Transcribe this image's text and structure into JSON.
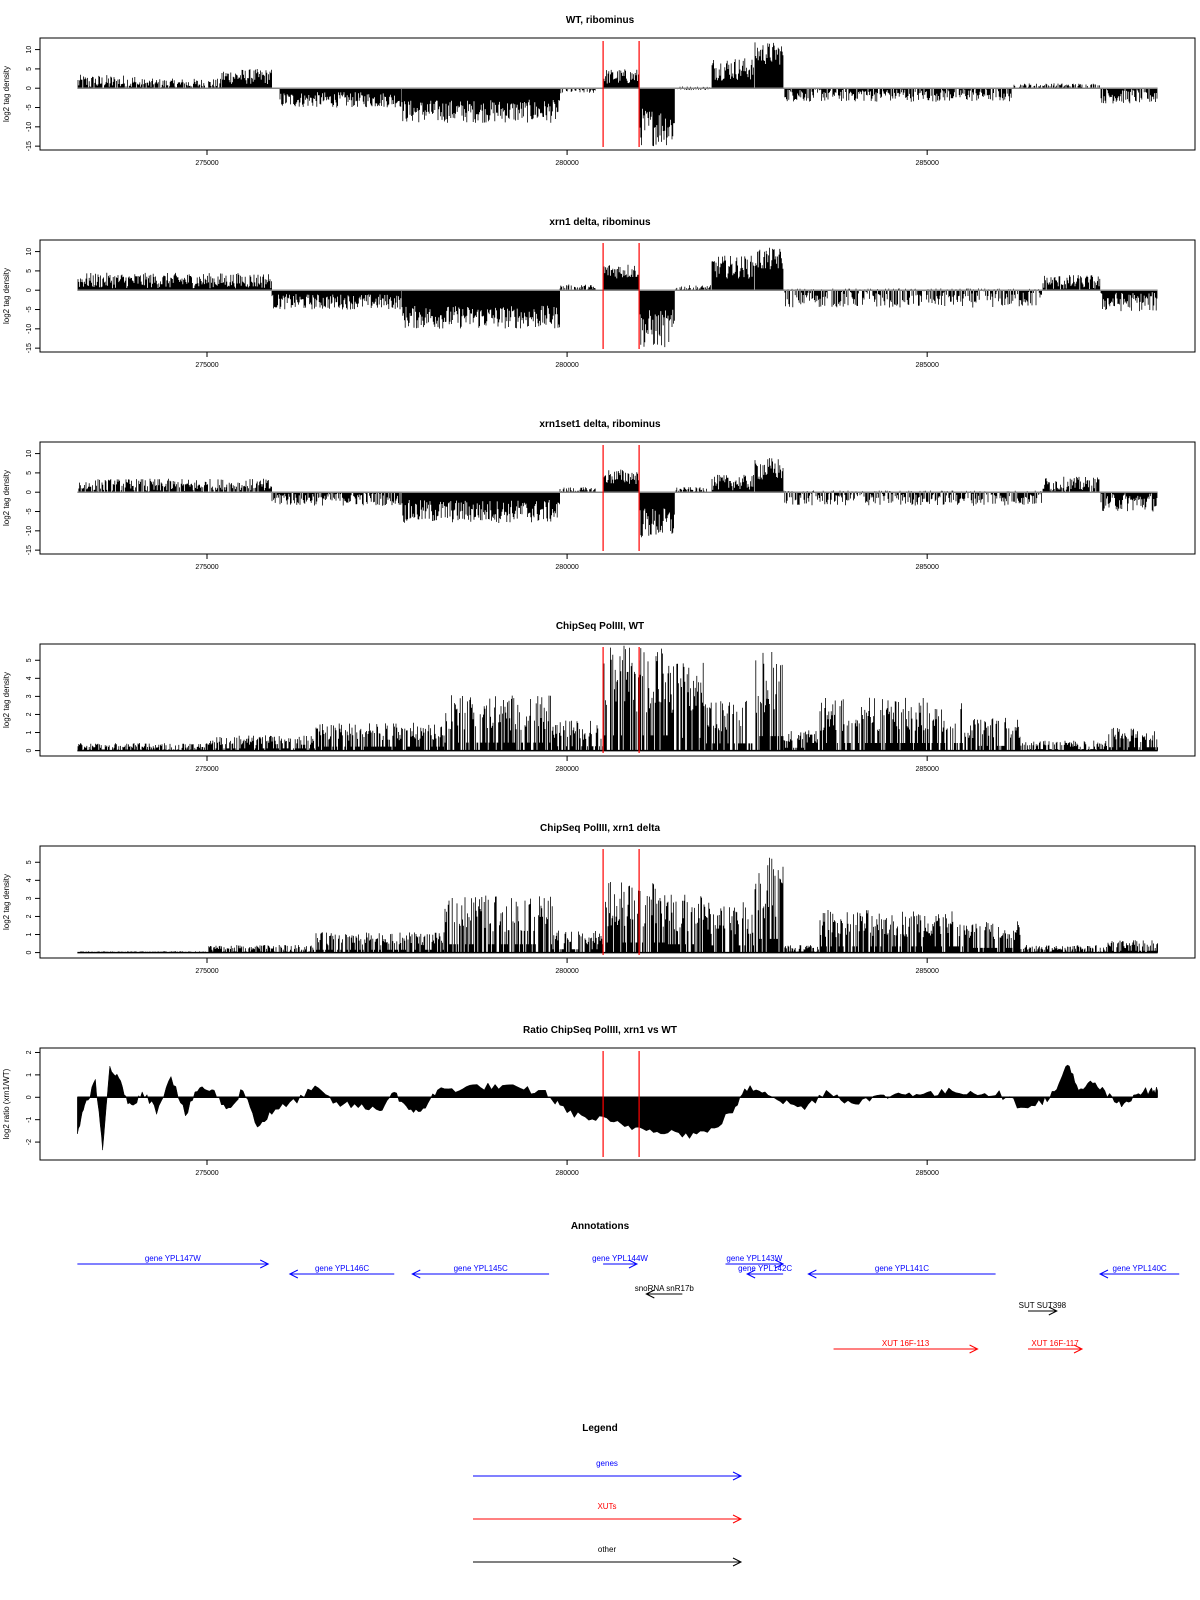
{
  "colors": {
    "gene": "#0000ff",
    "xut": "#ff0000",
    "other": "#000000",
    "marker": "#ff0000",
    "axis": "#000000",
    "fill": "#000000"
  },
  "markers": [
    280500,
    281000
  ],
  "xticks": [
    275000,
    280000,
    285000
  ],
  "xticks_labels": [
    "275000",
    "280000",
    "285000"
  ],
  "xrange": [
    273200,
    288200
  ],
  "chart_data": [
    {
      "type": "area",
      "title": "WT, ribominus",
      "ylabel": "log2 tag density",
      "ylim": [
        -16,
        13
      ],
      "yticks": [
        -15,
        -10,
        -5,
        0,
        5,
        10
      ],
      "yticks_labels": [
        "-15",
        "-10",
        "-5",
        "0",
        "5",
        "10"
      ],
      "profile": [
        [
          273200,
          274000,
          1.5,
          2
        ],
        [
          274000,
          275200,
          1,
          1.5
        ],
        [
          275200,
          275900,
          3,
          2
        ],
        [
          276000,
          277700,
          -3,
          2
        ],
        [
          277700,
          279900,
          -6,
          3
        ],
        [
          279900,
          280400,
          -0.5,
          0.8
        ],
        [
          280500,
          281000,
          3,
          2
        ],
        [
          281000,
          281500,
          -10,
          5
        ],
        [
          281500,
          282000,
          0,
          0.5
        ],
        [
          282000,
          282600,
          5,
          3
        ],
        [
          282600,
          283000,
          9,
          3
        ],
        [
          283000,
          286200,
          -1.5,
          2
        ],
        [
          286200,
          287400,
          0.5,
          0.8
        ],
        [
          287400,
          288200,
          -2,
          2
        ]
      ]
    },
    {
      "type": "area",
      "title": "xrn1 delta, ribominus",
      "ylabel": "log2 tag density",
      "ylim": [
        -16,
        13
      ],
      "yticks": [
        -15,
        -10,
        -5,
        0,
        5,
        10
      ],
      "yticks_labels": [
        "-15",
        "-10",
        "-5",
        "0",
        "5",
        "10"
      ],
      "profile": [
        [
          273200,
          275900,
          2.5,
          2
        ],
        [
          275900,
          277700,
          -3,
          2
        ],
        [
          277700,
          279900,
          -7,
          3
        ],
        [
          279900,
          280400,
          0.5,
          1
        ],
        [
          280500,
          281000,
          5,
          2
        ],
        [
          281000,
          281500,
          -10,
          5
        ],
        [
          281500,
          282000,
          0.5,
          0.8
        ],
        [
          282000,
          282600,
          6,
          3
        ],
        [
          282600,
          283000,
          8,
          3
        ],
        [
          283000,
          286600,
          -1.5,
          3
        ],
        [
          286600,
          287400,
          2,
          2
        ],
        [
          287400,
          288200,
          -3,
          2.5
        ]
      ]
    },
    {
      "type": "area",
      "title": "xrn1set1 delta, ribominus",
      "ylabel": "log2 tag density",
      "ylim": [
        -16,
        13
      ],
      "yticks": [
        -15,
        -10,
        -5,
        0,
        5,
        10
      ],
      "yticks_labels": [
        "-15",
        "-10",
        "-5",
        "0",
        "5",
        "10"
      ],
      "profile": [
        [
          273200,
          275900,
          1.5,
          2
        ],
        [
          275900,
          277700,
          -1.5,
          2
        ],
        [
          277700,
          279900,
          -5,
          3
        ],
        [
          279900,
          280400,
          0.5,
          0.8
        ],
        [
          280500,
          281000,
          4,
          2
        ],
        [
          281000,
          281500,
          -8,
          4
        ],
        [
          281500,
          282000,
          0.5,
          0.8
        ],
        [
          282000,
          282600,
          2.5,
          2
        ],
        [
          282600,
          283000,
          6,
          3
        ],
        [
          283000,
          286600,
          -1,
          2.5
        ],
        [
          286600,
          287400,
          2,
          2
        ],
        [
          287400,
          288200,
          -2.5,
          2.5
        ]
      ]
    },
    {
      "type": "bar",
      "title": "ChipSeq PolIII, WT",
      "ylabel": "log2 tag density",
      "ylim": [
        -0.3,
        5.9
      ],
      "yticks": [
        0,
        1,
        2,
        3,
        4,
        5
      ],
      "yticks_labels": [
        "0",
        "1",
        "2",
        "3",
        "4",
        "5"
      ],
      "profile": [
        [
          273200,
          275000,
          0.3,
          0.5
        ],
        [
          275000,
          276500,
          0.6,
          0.8
        ],
        [
          276500,
          278300,
          1.1,
          0.9
        ],
        [
          278300,
          279800,
          2.2,
          0.8
        ],
        [
          279800,
          280500,
          1.2,
          0.8
        ],
        [
          280500,
          281400,
          4.2,
          1.2
        ],
        [
          281400,
          281900,
          3.5,
          1.4
        ],
        [
          281900,
          282600,
          2.0,
          0.8
        ],
        [
          282600,
          283000,
          4.0,
          0.7
        ],
        [
          283000,
          283500,
          0.8,
          0.6
        ],
        [
          283500,
          285500,
          2.1,
          0.8
        ],
        [
          285500,
          286300,
          1.3,
          0.7
        ],
        [
          286300,
          287500,
          0.4,
          0.5
        ],
        [
          287500,
          288200,
          0.9,
          0.7
        ]
      ]
    },
    {
      "type": "bar",
      "title": "ChipSeq PolIII, xrn1 delta",
      "ylabel": "log2 tag density",
      "ylim": [
        -0.3,
        5.9
      ],
      "yticks": [
        0,
        1,
        2,
        3,
        4,
        5
      ],
      "yticks_labels": [
        "0",
        "1",
        "2",
        "3",
        "4",
        "5"
      ],
      "profile": [
        [
          273200,
          275000,
          0.05,
          0.15
        ],
        [
          275000,
          276500,
          0.3,
          0.4
        ],
        [
          276500,
          278300,
          0.8,
          0.7
        ],
        [
          278300,
          279800,
          2.3,
          0.6
        ],
        [
          279800,
          280500,
          0.9,
          0.6
        ],
        [
          280500,
          281400,
          2.8,
          1.0
        ],
        [
          281400,
          281900,
          2.3,
          1.0
        ],
        [
          281900,
          282600,
          2.0,
          0.8
        ],
        [
          282600,
          283000,
          3.8,
          0.7
        ],
        [
          283000,
          283500,
          0.3,
          0.4
        ],
        [
          283500,
          285500,
          1.7,
          0.8
        ],
        [
          285500,
          286300,
          1.3,
          0.7
        ],
        [
          286300,
          287500,
          0.3,
          0.4
        ],
        [
          287500,
          288200,
          0.5,
          0.5
        ]
      ]
    },
    {
      "type": "area",
      "title": "Ratio ChipSeq PolIII, xrn1 vs WT",
      "ylabel": "log2 ratio (xrn1/WT)",
      "ylim": [
        -2.8,
        2.2
      ],
      "yticks": [
        -2,
        -1,
        0,
        1,
        2
      ],
      "yticks_labels": [
        "-2",
        "-1",
        "0",
        "1",
        "2"
      ],
      "points": [
        [
          273200,
          -1.5
        ],
        [
          273300,
          -0.5
        ],
        [
          273450,
          0.8
        ],
        [
          273550,
          -2.4
        ],
        [
          273650,
          1.4
        ],
        [
          273800,
          0.6
        ],
        [
          273950,
          -0.5
        ],
        [
          274100,
          0.3
        ],
        [
          274300,
          -0.6
        ],
        [
          274500,
          1.0
        ],
        [
          274700,
          -0.8
        ],
        [
          274900,
          0.5
        ],
        [
          275100,
          0.2
        ],
        [
          275300,
          -0.6
        ],
        [
          275500,
          0.4
        ],
        [
          275700,
          -1.3
        ],
        [
          275900,
          -0.7
        ],
        [
          276200,
          -0.2
        ],
        [
          276500,
          0.4
        ],
        [
          276800,
          -0.3
        ],
        [
          277100,
          -0.4
        ],
        [
          277400,
          -0.6
        ],
        [
          277600,
          0.3
        ],
        [
          277800,
          -0.7
        ],
        [
          278000,
          -0.5
        ],
        [
          278200,
          0.3
        ],
        [
          278500,
          0.4
        ],
        [
          278800,
          0.5
        ],
        [
          279100,
          0.45
        ],
        [
          279400,
          0.35
        ],
        [
          279700,
          0.2
        ],
        [
          279900,
          -0.4
        ],
        [
          280200,
          -0.9
        ],
        [
          280500,
          -1.0
        ],
        [
          280800,
          -1.3
        ],
        [
          281100,
          -1.4
        ],
        [
          281400,
          -1.5
        ],
        [
          281700,
          -1.7
        ],
        [
          282000,
          -1.5
        ],
        [
          282300,
          -0.6
        ],
        [
          282500,
          0.4
        ],
        [
          282750,
          0.3
        ],
        [
          283000,
          -0.2
        ],
        [
          283300,
          -0.5
        ],
        [
          283600,
          0.3
        ],
        [
          283900,
          -0.2
        ],
        [
          284200,
          -0.1
        ],
        [
          284500,
          0.1
        ],
        [
          284800,
          0.2
        ],
        [
          285100,
          0.15
        ],
        [
          285400,
          0.3
        ],
        [
          285700,
          0.2
        ],
        [
          286000,
          0.15
        ],
        [
          286300,
          -0.4
        ],
        [
          286600,
          -0.2
        ],
        [
          286800,
          0.3
        ],
        [
          286950,
          1.6
        ],
        [
          287100,
          0.2
        ],
        [
          287300,
          0.7
        ],
        [
          287500,
          0.1
        ],
        [
          287700,
          -0.4
        ],
        [
          287900,
          0.2
        ],
        [
          288100,
          0.3
        ],
        [
          288200,
          0.3
        ]
      ]
    }
  ],
  "annotations": {
    "title": "Annotations",
    "items": [
      {
        "label": "gene YPL147W",
        "type": "gene",
        "start": 273200,
        "end": 275850,
        "dir": "right",
        "row": 0
      },
      {
        "label": "gene YPL146C",
        "type": "gene",
        "start": 276150,
        "end": 277600,
        "dir": "left",
        "row": 1
      },
      {
        "label": "gene YPL145C",
        "type": "gene",
        "start": 277850,
        "end": 279750,
        "dir": "left",
        "row": 1
      },
      {
        "label": "gene YPL144W",
        "type": "gene",
        "start": 280500,
        "end": 280970,
        "dir": "right",
        "row": 0
      },
      {
        "label": "gene YPL143W",
        "type": "gene",
        "start": 282200,
        "end": 283000,
        "dir": "right",
        "row": 0
      },
      {
        "label": "gene YPL142C",
        "type": "gene",
        "start": 282500,
        "end": 283000,
        "dir": "left",
        "row": 1
      },
      {
        "label": "gene YPL141C",
        "type": "gene",
        "start": 283350,
        "end": 285950,
        "dir": "left",
        "row": 1
      },
      {
        "label": "gene YPL140C",
        "type": "gene",
        "start": 287400,
        "end": 288500,
        "dir": "left",
        "row": 1
      },
      {
        "label": "snoRNA snR17b",
        "type": "other",
        "start": 281100,
        "end": 281600,
        "dir": "left",
        "row": 2
      },
      {
        "label": "SUT SUT398",
        "type": "other",
        "start": 286400,
        "end": 286800,
        "dir": "right",
        "row": 3
      },
      {
        "label": "XUT 16F-113",
        "type": "xut",
        "start": 283700,
        "end": 285700,
        "dir": "right",
        "row": 5
      },
      {
        "label": "XUT 16F-117",
        "type": "xut",
        "start": 286400,
        "end": 287150,
        "dir": "right",
        "row": 5
      }
    ]
  },
  "legend": {
    "title": "Legend",
    "items": [
      {
        "label": "genes",
        "type": "gene"
      },
      {
        "label": "XUTs",
        "type": "xut"
      },
      {
        "label": "other",
        "type": "other"
      }
    ]
  }
}
